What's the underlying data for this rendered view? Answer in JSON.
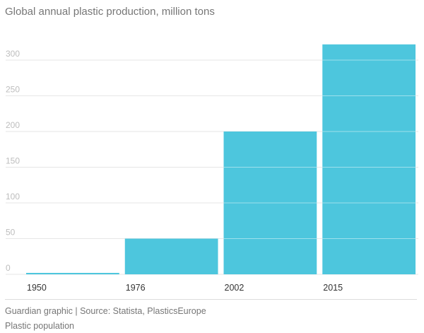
{
  "chart_data": {
    "type": "bar",
    "title": "Global annual plastic production, million tons",
    "categories": [
      "1950",
      "1976",
      "2002",
      "2015"
    ],
    "values": [
      2,
      50,
      200,
      322
    ],
    "yticks": [
      0,
      50,
      100,
      150,
      200,
      250,
      300
    ],
    "ylim": [
      0,
      330
    ],
    "grid": true,
    "bar_color": "#4dc6dd",
    "grid_color": "#e6e6e6"
  },
  "footer": {
    "source": "Guardian graphic | Source: Statista, PlasticsEurope",
    "caption": "Plastic population"
  }
}
